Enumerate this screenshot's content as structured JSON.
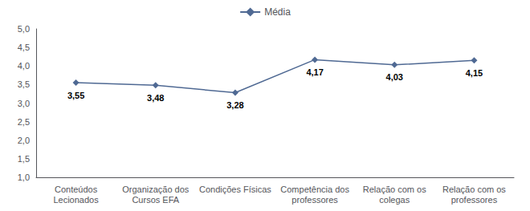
{
  "chart_data": {
    "type": "line",
    "categories": [
      "Conteúdos\nLecionados",
      "Organização dos\nCursos EFA",
      "Condições Físicas",
      "Competência dos\nprofessores",
      "Relação com os\ncolegas",
      "Relação com os\nprofessores"
    ],
    "series": [
      {
        "name": "Média",
        "color": "#4f6993",
        "marker": "diamond",
        "values": [
          3.55,
          3.48,
          3.28,
          4.17,
          4.03,
          4.15
        ],
        "value_labels": [
          "3,55",
          "3,48",
          "3,28",
          "4,17",
          "4,03",
          "4,15"
        ]
      }
    ],
    "ylim": [
      1.0,
      5.0
    ],
    "yticks": [
      {
        "value": 1.0,
        "label": "1,0"
      },
      {
        "value": 1.5,
        "label": "1,5"
      },
      {
        "value": 2.0,
        "label": "2,0"
      },
      {
        "value": 2.5,
        "label": "2,5"
      },
      {
        "value": 3.0,
        "label": "3,0"
      },
      {
        "value": 3.5,
        "label": "3,5"
      },
      {
        "value": 4.0,
        "label": "4,0"
      },
      {
        "value": 4.5,
        "label": "4,5"
      },
      {
        "value": 5.0,
        "label": "5,0"
      }
    ],
    "grid": false,
    "legend": "top",
    "data_labels": true
  }
}
